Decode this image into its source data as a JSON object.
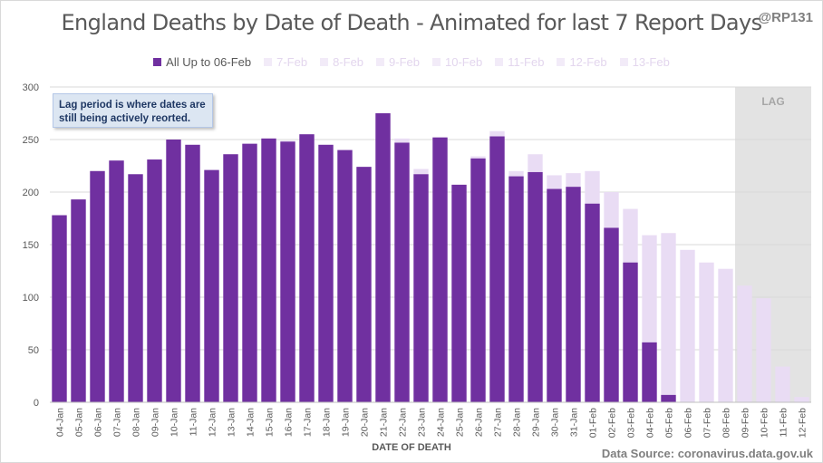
{
  "title": "England Deaths by Date of Death - Animated for last 7 Report Days",
  "handle": "@RP131",
  "annotation": "Lag period is where dates are still being actively reorted.",
  "lag_label": "LAG",
  "source": "Data Source: coronavirus.data.gov.uk",
  "colors": {
    "main": "#7030a0",
    "ghost": "#e9dcf4",
    "lag": "#d9d9d9",
    "grid": "#d9d9d9"
  },
  "chart_data": {
    "type": "bar",
    "xlabel": "DATE OF DEATH",
    "ylabel": "",
    "ylim": [
      0,
      300
    ],
    "yticks": [
      0,
      50,
      100,
      150,
      200,
      250,
      300
    ],
    "lag_start": "09-Feb",
    "categories": [
      "04-Jan",
      "05-Jan",
      "06-Jan",
      "07-Jan",
      "08-Jan",
      "09-Jan",
      "10-Jan",
      "11-Jan",
      "12-Jan",
      "13-Jan",
      "14-Jan",
      "15-Jan",
      "16-Jan",
      "17-Jan",
      "18-Jan",
      "19-Jan",
      "20-Jan",
      "21-Jan",
      "22-Jan",
      "23-Jan",
      "24-Jan",
      "25-Jan",
      "26-Jan",
      "27-Jan",
      "28-Jan",
      "29-Jan",
      "30-Jan",
      "31-Jan",
      "01-Feb",
      "02-Feb",
      "03-Feb",
      "04-Feb",
      "05-Feb",
      "06-Feb",
      "07-Feb",
      "08-Feb",
      "09-Feb",
      "10-Feb",
      "11-Feb",
      "12-Feb"
    ],
    "legend": [
      "All Up to 06-Feb",
      "7-Feb",
      "8-Feb",
      "9-Feb",
      "10-Feb",
      "11-Feb",
      "12-Feb",
      "13-Feb"
    ],
    "series": [
      {
        "name": "All Up to 06-Feb",
        "values": [
          178,
          193,
          220,
          230,
          217,
          231,
          250,
          245,
          221,
          236,
          246,
          251,
          248,
          255,
          245,
          240,
          224,
          275,
          247,
          217,
          252,
          207,
          232,
          253,
          215,
          219,
          203,
          205,
          189,
          166,
          133,
          57,
          7,
          0,
          0,
          0,
          0,
          0,
          0,
          0
        ]
      },
      {
        "name": "13-Feb",
        "values": [
          178,
          193,
          220,
          230,
          217,
          231,
          250,
          245,
          221,
          236,
          246,
          251,
          249,
          255,
          245,
          240,
          224,
          275,
          251,
          222,
          252,
          207,
          234,
          258,
          220,
          236,
          216,
          218,
          220,
          200,
          184,
          159,
          161,
          145,
          133,
          127,
          111,
          99,
          34,
          5
        ]
      }
    ]
  }
}
